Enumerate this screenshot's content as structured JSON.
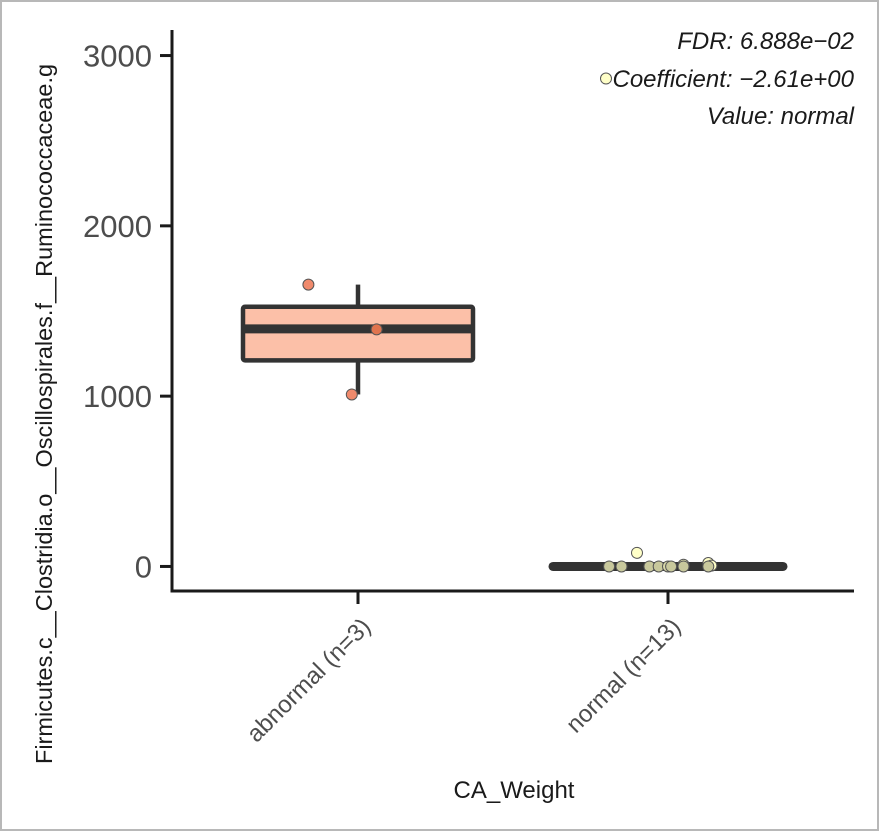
{
  "chart_data": {
    "type": "box",
    "xlabel": "CA_Weight",
    "ylabel": "Firmicutes.c__Clostridia.o__Oscillospirales.f__Ruminococcaceae.g",
    "ylim": [
      -150,
      3150
    ],
    "yticks": [
      0,
      1000,
      2000,
      3000
    ],
    "categories": [
      "abnormal (n=3)",
      "normal (n=13)"
    ],
    "grid": false,
    "legend": "none",
    "annotations": [
      "FDR: 6.888e−02",
      "Coefficient: −2.61e+00",
      "Value: normal"
    ],
    "boxes": [
      {
        "category": "abnormal (n=3)",
        "whisker_low": 1010,
        "q1": 1210,
        "median": 1395,
        "q3": 1525,
        "whisker_high": 1655,
        "fill": "#fcc0a8",
        "points": [
          {
            "x_offset": -0.16,
            "y": 1655,
            "color": "#f08a6c"
          },
          {
            "x_offset": 0.06,
            "y": 1392,
            "color": "#e0744e"
          },
          {
            "x_offset": -0.02,
            "y": 1010,
            "color": "#f08a6c"
          }
        ]
      },
      {
        "category": "normal (n=13)",
        "whisker_low": 0,
        "q1": 0,
        "median": 0,
        "q3": 0,
        "whisker_high": 0,
        "fill": "#ffffbf",
        "points": [
          {
            "x_offset": -0.2,
            "y": 2865,
            "color": "#ffffc8"
          },
          {
            "x_offset": -0.1,
            "y": 80,
            "color": "#ffffc8"
          },
          {
            "x_offset": 0.05,
            "y": 10,
            "color": "#e8e8b0"
          },
          {
            "x_offset": 0.13,
            "y": 20,
            "color": "#ffffc8"
          },
          {
            "x_offset": 0.14,
            "y": 5,
            "color": "#ffffc8"
          },
          {
            "x_offset": -0.19,
            "y": 0,
            "color": "#c8c89c"
          },
          {
            "x_offset": -0.15,
            "y": 0,
            "color": "#c8c89c"
          },
          {
            "x_offset": -0.06,
            "y": 0,
            "color": "#c8c89c"
          },
          {
            "x_offset": -0.03,
            "y": 0,
            "color": "#c8c89c"
          },
          {
            "x_offset": 0.0,
            "y": 0,
            "color": "#d8d8a8"
          },
          {
            "x_offset": 0.01,
            "y": 0,
            "color": "#c8c89c"
          },
          {
            "x_offset": 0.05,
            "y": 0,
            "color": "#c8c89c"
          },
          {
            "x_offset": 0.13,
            "y": 0,
            "color": "#c8c89c"
          }
        ]
      }
    ]
  }
}
